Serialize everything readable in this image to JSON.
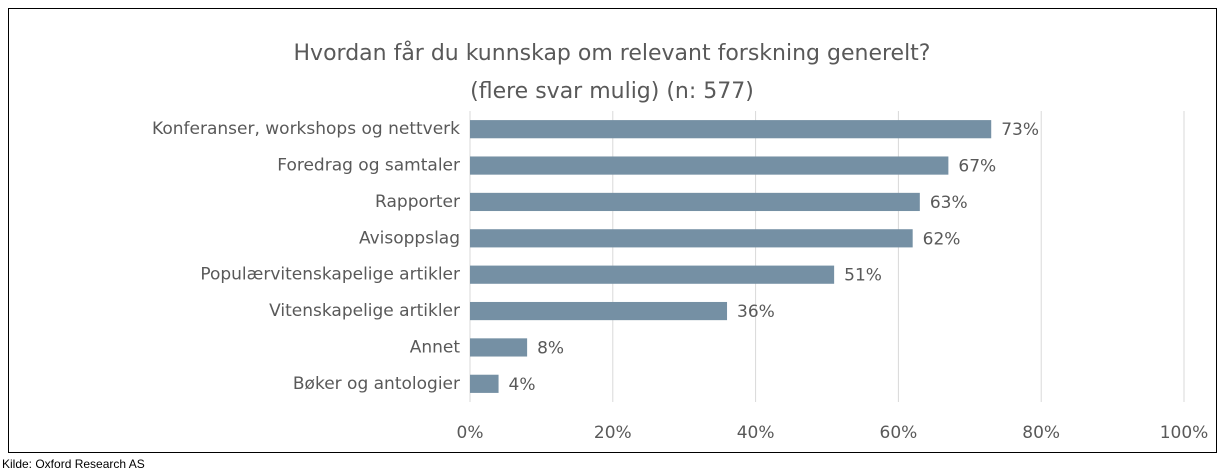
{
  "chart_data": {
    "type": "barh",
    "title": "Hvordan får du kunnskap om relevant forskning generelt?",
    "subtitle": "(flere svar mulig) (n: 577)",
    "categories": [
      "Konferanser, workshops og nettverk",
      "Foredrag og samtaler",
      "Rapporter",
      "Avisoppslag",
      "Populærvitenskapelige artikler",
      "Vitenskapelige artikler",
      "Annet",
      "Bøker og antologier"
    ],
    "values": [
      73,
      67,
      63,
      62,
      51,
      36,
      8,
      4
    ],
    "value_labels": [
      "73%",
      "67%",
      "63%",
      "62%",
      "51%",
      "36%",
      "8%",
      "4%"
    ],
    "color": "#7590a4",
    "xlim": [
      0,
      100
    ],
    "xticks": [
      {
        "value": 0,
        "label": "0%"
      },
      {
        "value": 20,
        "label": "20%"
      },
      {
        "value": 40,
        "label": "40%"
      },
      {
        "value": 60,
        "label": "60%"
      },
      {
        "value": 80,
        "label": "80%"
      },
      {
        "value": 100,
        "label": "100%"
      }
    ],
    "grid": true,
    "source": "Kilde: Oxford Research AS"
  }
}
